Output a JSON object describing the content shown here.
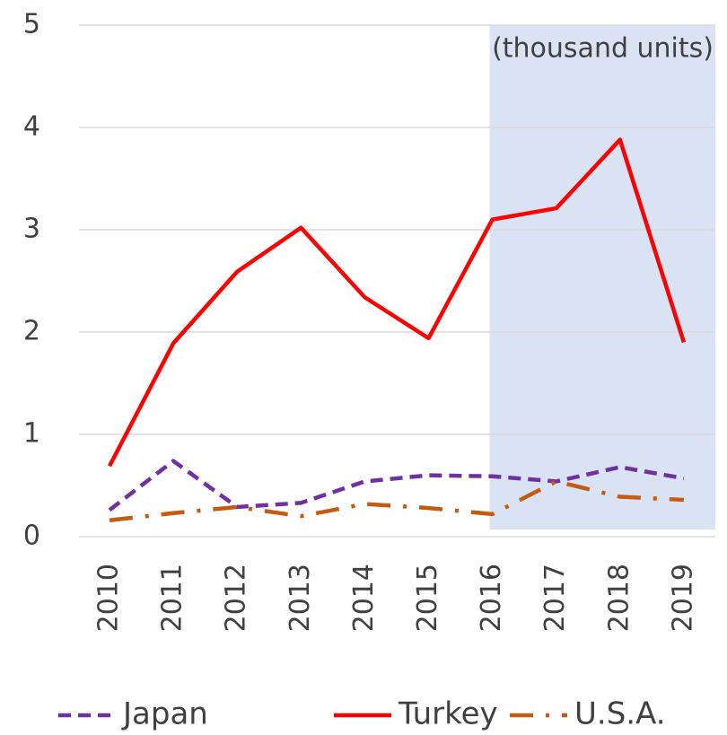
{
  "chart_data": {
    "type": "line",
    "annotation": "(thousand units)",
    "categories": [
      "2010",
      "2011",
      "2012",
      "2013",
      "2014",
      "2015",
      "2016",
      "2017",
      "2018",
      "2019"
    ],
    "series": [
      {
        "name": "Japan",
        "color": "#7030a0",
        "dash": "dash",
        "values": [
          0.26,
          0.74,
          0.29,
          0.33,
          0.54,
          0.6,
          0.59,
          0.54,
          0.68,
          0.57
        ]
      },
      {
        "name": "Turkey",
        "color": "#ff0000",
        "dash": "solid",
        "values": [
          0.69,
          1.89,
          2.59,
          3.02,
          2.34,
          1.94,
          3.1,
          3.21,
          3.88,
          1.9
        ]
      },
      {
        "name": "U.S.A.",
        "color": "#c55a11",
        "dash": "dashdot",
        "values": [
          0.16,
          0.23,
          0.29,
          0.2,
          0.32,
          0.28,
          0.22,
          0.54,
          0.39,
          0.36
        ]
      }
    ],
    "ylim": [
      0,
      5
    ],
    "yticks": [
      0,
      1,
      2,
      3,
      4,
      5
    ],
    "grid": true,
    "shaded_from": "2016",
    "shade_color": "#dae3f3",
    "legend": "bottom"
  }
}
